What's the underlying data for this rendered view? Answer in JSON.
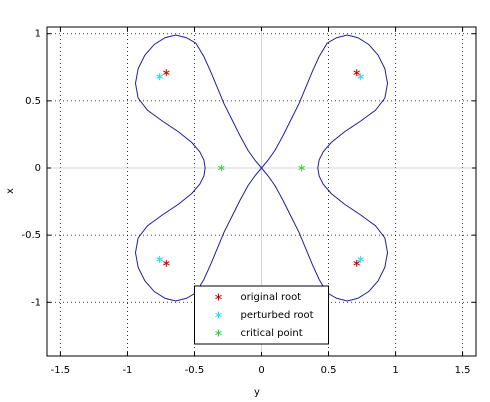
{
  "chart_data": {
    "type": "line",
    "xlabel": "y",
    "ylabel": "x",
    "xlim": [
      -1.6,
      1.6
    ],
    "ylim": [
      -1.4,
      1.05
    ],
    "xticks": [
      -1.5,
      -1,
      -0.5,
      0,
      0.5,
      1,
      1.5
    ],
    "yticks": [
      -1,
      -0.5,
      0,
      0.5,
      1
    ],
    "grid": true,
    "legend": "lower center",
    "series": [
      {
        "type": "line",
        "color": "#1f1f9e",
        "x": [
          0,
          0.05,
          0.1,
          0.16,
          0.22,
          0.28,
          0.33,
          0.38,
          0.43,
          0.49,
          0.56,
          0.64,
          0.72,
          0.8,
          0.87,
          0.92,
          0.94,
          0.92,
          0.85,
          0.74,
          0.62,
          0.52,
          0.46,
          0.43,
          0.42,
          0.43,
          0.46,
          0.52,
          0.62,
          0.74,
          0.85,
          0.92,
          0.94,
          0.92,
          0.87,
          0.8,
          0.72,
          0.64,
          0.56,
          0.49,
          0.43,
          0.38,
          0.33,
          0.28,
          0.22,
          0.16,
          0.1,
          0.05,
          0,
          -0.05,
          -0.1,
          -0.16,
          -0.22,
          -0.28,
          -0.33,
          -0.38,
          -0.43,
          -0.49,
          -0.56,
          -0.64,
          -0.72,
          -0.8,
          -0.87,
          -0.92,
          -0.94,
          -0.92,
          -0.85,
          -0.74,
          -0.62,
          -0.52,
          -0.46,
          -0.43,
          -0.42,
          -0.43,
          -0.46,
          -0.52,
          -0.62,
          -0.74,
          -0.85,
          -0.92,
          -0.94,
          -0.92,
          -0.87,
          -0.8,
          -0.72,
          -0.64,
          -0.56,
          -0.49,
          -0.43,
          -0.38,
          -0.33,
          -0.28,
          -0.22,
          -0.16,
          -0.1,
          -0.05,
          0
        ],
        "values": [
          0,
          0.06,
          0.13,
          0.24,
          0.36,
          0.48,
          0.6,
          0.72,
          0.83,
          0.93,
          0.97,
          0.99,
          0.97,
          0.92,
          0.84,
          0.74,
          0.63,
          0.52,
          0.43,
          0.35,
          0.27,
          0.19,
          0.12,
          0.06,
          0,
          -0.06,
          -0.12,
          -0.19,
          -0.27,
          -0.35,
          -0.43,
          -0.52,
          -0.63,
          -0.74,
          -0.84,
          -0.92,
          -0.97,
          -0.99,
          -0.97,
          -0.93,
          -0.83,
          -0.72,
          -0.6,
          -0.48,
          -0.36,
          -0.24,
          -0.13,
          -0.06,
          0,
          0.06,
          0.13,
          0.24,
          0.36,
          0.48,
          0.6,
          0.72,
          0.83,
          0.93,
          0.97,
          0.99,
          0.97,
          0.92,
          0.84,
          0.74,
          0.63,
          0.52,
          0.43,
          0.35,
          0.27,
          0.19,
          0.12,
          0.06,
          0,
          -0.06,
          -0.12,
          -0.19,
          -0.27,
          -0.35,
          -0.43,
          -0.52,
          -0.63,
          -0.74,
          -0.84,
          -0.92,
          -0.97,
          -0.99,
          -0.97,
          -0.93,
          -0.83,
          -0.72,
          -0.6,
          -0.48,
          -0.36,
          -0.24,
          -0.13,
          -0.06,
          0
        ]
      },
      {
        "type": "scatter",
        "name": "original root",
        "color": "#cc0000",
        "x": [
          0.71,
          -0.71,
          -0.71,
          0.71
        ],
        "values": [
          0.71,
          0.71,
          -0.71,
          -0.71
        ]
      },
      {
        "type": "scatter",
        "name": "perturbed root",
        "color": "#22d8ee",
        "x": [
          0.74,
          -0.76,
          -0.76,
          0.74
        ],
        "values": [
          0.68,
          0.68,
          -0.68,
          -0.68
        ]
      },
      {
        "type": "scatter",
        "name": "critical point",
        "color": "#33cc33",
        "x": [
          0.3,
          -0.3
        ],
        "values": [
          0,
          0
        ]
      }
    ]
  }
}
